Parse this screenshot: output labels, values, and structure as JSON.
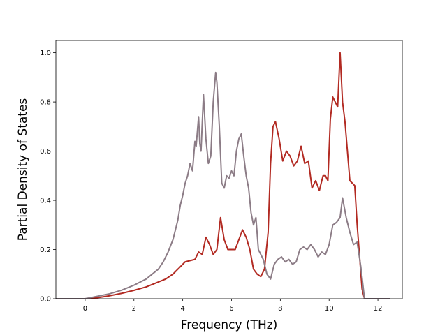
{
  "chart_data": {
    "type": "line",
    "title": "",
    "xlabel": "Frequency (THz)",
    "ylabel": "Partial Density of States",
    "xlim": [
      -1.2,
      13.0
    ],
    "ylim": [
      0.0,
      1.05
    ],
    "xticks": [
      0,
      2,
      4,
      6,
      8,
      10,
      12
    ],
    "yticks": [
      0.0,
      0.2,
      0.4,
      0.6,
      0.8,
      1.0
    ],
    "xtick_labels": [
      "0",
      "2",
      "4",
      "6",
      "8",
      "10",
      "12"
    ],
    "ytick_labels": [
      "0.0",
      "0.2",
      "0.4",
      "0.6",
      "0.8",
      "1.0"
    ],
    "grid": false,
    "legend": "none",
    "series": [
      {
        "color": "#b22a22",
        "x": [
          -1.2,
          0.0,
          0.5,
          1.0,
          1.5,
          2.0,
          2.5,
          3.0,
          3.3,
          3.6,
          3.9,
          4.1,
          4.3,
          4.5,
          4.65,
          4.8,
          4.95,
          5.1,
          5.25,
          5.4,
          5.55,
          5.7,
          5.85,
          6.0,
          6.15,
          6.3,
          6.45,
          6.6,
          6.75,
          6.9,
          7.05,
          7.2,
          7.35,
          7.5,
          7.6,
          7.7,
          7.8,
          7.95,
          8.1,
          8.25,
          8.4,
          8.55,
          8.7,
          8.85,
          9.0,
          9.15,
          9.3,
          9.45,
          9.6,
          9.75,
          9.85,
          9.95,
          10.05,
          10.15,
          10.25,
          10.35,
          10.45,
          10.55,
          10.65,
          10.75,
          10.85,
          10.95,
          11.05,
          11.15,
          11.25,
          11.35,
          11.45,
          12.5
        ],
        "values": [
          0.0,
          0.0,
          0.004,
          0.012,
          0.022,
          0.034,
          0.048,
          0.068,
          0.08,
          0.1,
          0.13,
          0.15,
          0.155,
          0.16,
          0.19,
          0.18,
          0.25,
          0.22,
          0.18,
          0.2,
          0.33,
          0.24,
          0.2,
          0.2,
          0.2,
          0.24,
          0.28,
          0.25,
          0.2,
          0.12,
          0.1,
          0.09,
          0.12,
          0.27,
          0.55,
          0.7,
          0.72,
          0.65,
          0.56,
          0.6,
          0.58,
          0.54,
          0.56,
          0.62,
          0.55,
          0.56,
          0.45,
          0.48,
          0.44,
          0.5,
          0.5,
          0.48,
          0.73,
          0.82,
          0.8,
          0.78,
          1.0,
          0.8,
          0.72,
          0.6,
          0.48,
          0.47,
          0.46,
          0.3,
          0.17,
          0.04,
          0.0,
          0.0
        ]
      },
      {
        "color": "#8c7c86",
        "x": [
          -1.2,
          0.0,
          0.5,
          1.0,
          1.5,
          2.0,
          2.5,
          3.0,
          3.2,
          3.4,
          3.6,
          3.8,
          3.9,
          4.0,
          4.1,
          4.2,
          4.3,
          4.4,
          4.5,
          4.55,
          4.65,
          4.7,
          4.75,
          4.85,
          4.95,
          5.05,
          5.15,
          5.25,
          5.35,
          5.4,
          5.5,
          5.6,
          5.7,
          5.8,
          5.9,
          6.0,
          6.1,
          6.2,
          6.3,
          6.4,
          6.5,
          6.6,
          6.7,
          6.8,
          6.9,
          7.0,
          7.1,
          7.2,
          7.3,
          7.45,
          7.6,
          7.75,
          7.9,
          8.05,
          8.2,
          8.35,
          8.5,
          8.65,
          8.8,
          8.95,
          9.1,
          9.25,
          9.4,
          9.55,
          9.7,
          9.85,
          10.0,
          10.15,
          10.3,
          10.45,
          10.55,
          10.7,
          10.85,
          11.0,
          11.15,
          11.3,
          11.45,
          12.5
        ],
        "values": [
          0.0,
          0.0,
          0.01,
          0.02,
          0.035,
          0.055,
          0.08,
          0.12,
          0.15,
          0.19,
          0.24,
          0.32,
          0.38,
          0.42,
          0.47,
          0.5,
          0.55,
          0.52,
          0.64,
          0.62,
          0.74,
          0.63,
          0.6,
          0.83,
          0.65,
          0.55,
          0.58,
          0.8,
          0.92,
          0.88,
          0.7,
          0.47,
          0.45,
          0.5,
          0.49,
          0.52,
          0.5,
          0.6,
          0.65,
          0.67,
          0.58,
          0.5,
          0.45,
          0.35,
          0.3,
          0.33,
          0.2,
          0.18,
          0.16,
          0.1,
          0.08,
          0.14,
          0.16,
          0.17,
          0.15,
          0.16,
          0.14,
          0.15,
          0.2,
          0.21,
          0.2,
          0.22,
          0.2,
          0.17,
          0.19,
          0.18,
          0.22,
          0.3,
          0.31,
          0.33,
          0.41,
          0.33,
          0.27,
          0.22,
          0.23,
          0.13,
          0.0,
          0.0
        ]
      }
    ]
  }
}
